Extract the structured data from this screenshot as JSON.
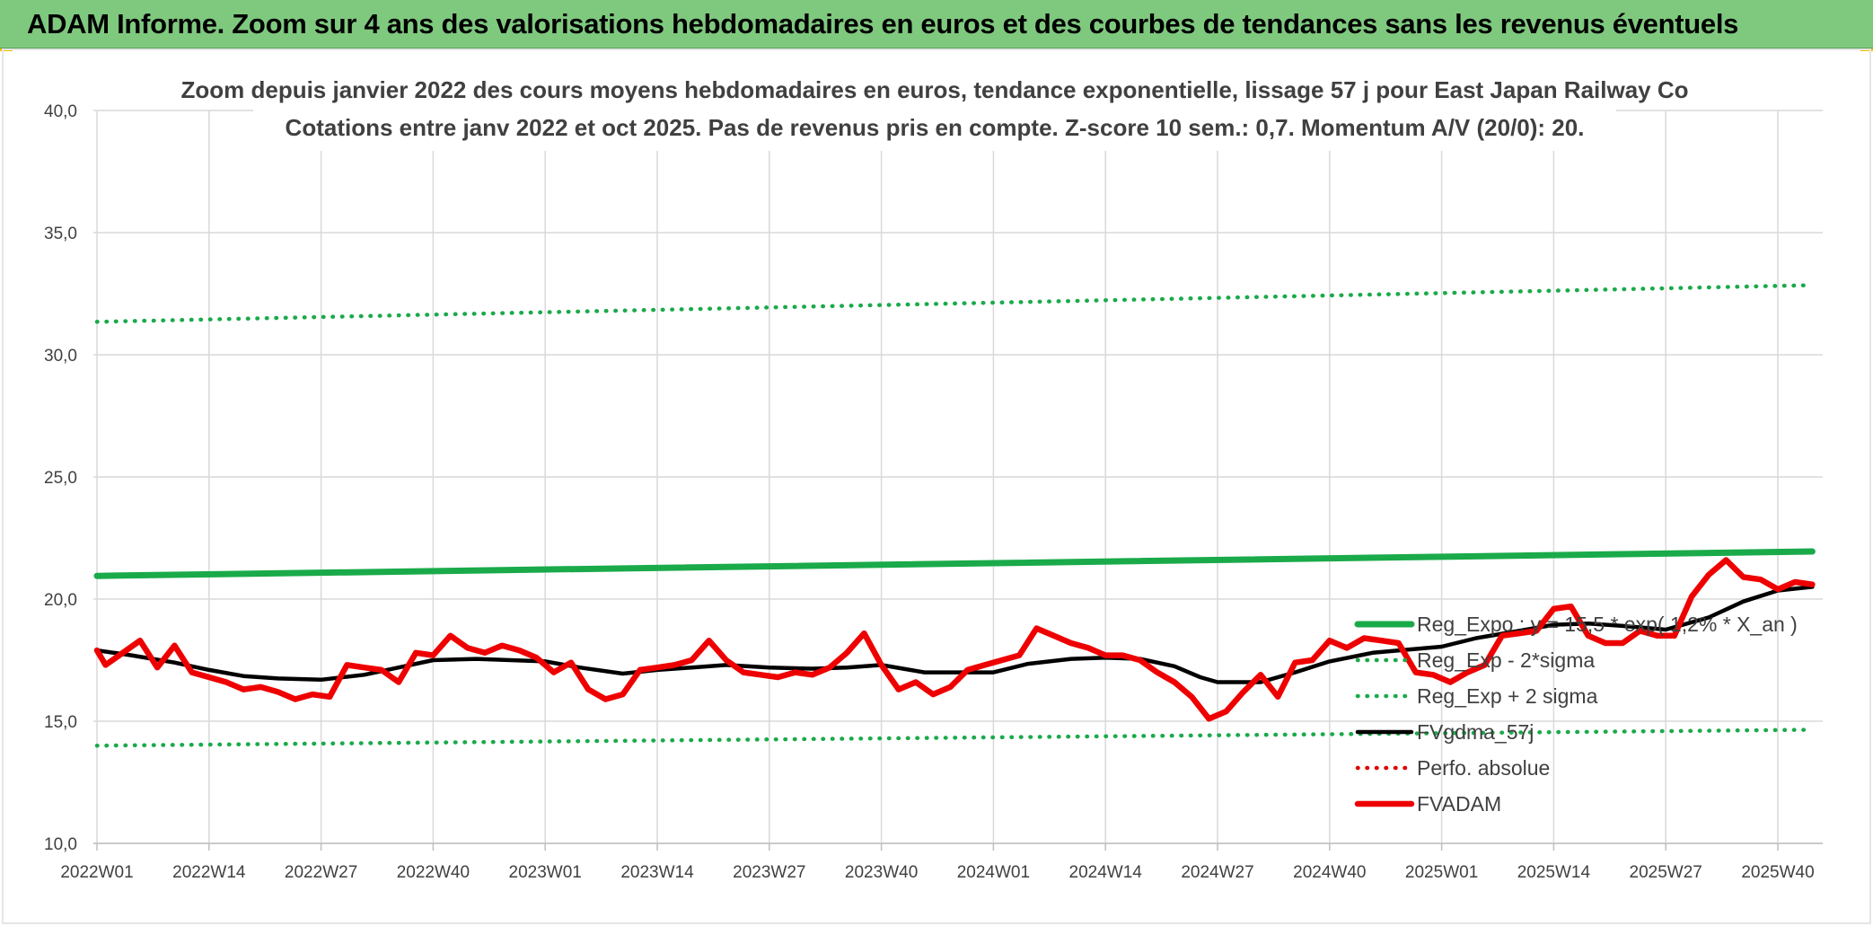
{
  "banner": {
    "title": "ADAM Informe. Zoom sur 4 ans des valorisations hebdomadaires en euros et des courbes de tendances sans les revenus éventuels",
    "background": "#7fc97f"
  },
  "chart_data": {
    "type": "line",
    "title": "Zoom depuis janvier 2022 des cours moyens hebdomadaires en euros, tendance exponentielle, lissage 57 j pour East Japan Railway Co",
    "subtitle": "Cotations entre janv 2022 et oct 2025. Pas de revenus pris en compte. Z-score 10 sem.: 0,7. Momentum A/V (20/0): 20.",
    "xlabel": "",
    "ylabel": "",
    "ylim": [
      10,
      40
    ],
    "yticks": [
      "10,0",
      "15,0",
      "20,0",
      "25,0",
      "30,0",
      "35,0",
      "40,0"
    ],
    "grid": true,
    "legend_position": "right",
    "x_tick_labels": [
      "2022W01",
      "2022W14",
      "2022W27",
      "2022W40",
      "2023W01",
      "2023W14",
      "2023W27",
      "2023W40",
      "2024W01",
      "2024W14",
      "2024W27",
      "2024W40",
      "2025W01",
      "2025W14",
      "2025W27",
      "2025W40"
    ],
    "series": [
      {
        "name": "Reg_Expo : y = 15,5 * exp( 1,2% * X_an )",
        "color": "#1aaa4a",
        "style": "solid-thick",
        "x": [
          "2022W01",
          "2025W44"
        ],
        "values": [
          20.95,
          21.95
        ]
      },
      {
        "name": "Reg_Exp - 2*sigma",
        "color": "#1aaa4a",
        "style": "dotted",
        "x": [
          "2022W01",
          "2025W44"
        ],
        "values": [
          14.0,
          14.65
        ]
      },
      {
        "name": "Reg_Exp + 2 sigma",
        "color": "#1aaa4a",
        "style": "dotted",
        "x": [
          "2022W01",
          "2025W44"
        ],
        "values": [
          31.35,
          32.85
        ]
      },
      {
        "name": "FVgdma_57j",
        "color": "#000000",
        "style": "solid",
        "x": [
          "2022W01",
          "2022W05",
          "2022W10",
          "2022W14",
          "2022W18",
          "2022W22",
          "2022W27",
          "2022W32",
          "2022W36",
          "2022W40",
          "2022W45",
          "2023W01",
          "2023W05",
          "2023W10",
          "2023W14",
          "2023W18",
          "2023W22",
          "2023W27",
          "2023W32",
          "2023W36",
          "2023W40",
          "2023W45",
          "2024W01",
          "2024W05",
          "2024W10",
          "2024W14",
          "2024W18",
          "2024W22",
          "2024W25",
          "2024W27",
          "2024W32",
          "2024W36",
          "2024W40",
          "2024W45",
          "2025W01",
          "2025W05",
          "2025W10",
          "2025W14",
          "2025W18",
          "2025W22",
          "2025W27",
          "2025W32",
          "2025W36",
          "2025W40",
          "2025W44"
        ],
        "values": [
          17.9,
          17.7,
          17.4,
          17.1,
          16.85,
          16.75,
          16.7,
          16.9,
          17.2,
          17.5,
          17.55,
          17.45,
          17.2,
          16.95,
          17.1,
          17.2,
          17.3,
          17.2,
          17.15,
          17.2,
          17.3,
          17.0,
          17.0,
          17.35,
          17.55,
          17.6,
          17.55,
          17.25,
          16.8,
          16.6,
          16.6,
          17.0,
          17.45,
          17.8,
          18.05,
          18.4,
          18.7,
          18.95,
          19.0,
          18.9,
          18.75,
          19.25,
          19.9,
          20.35,
          20.5
        ]
      },
      {
        "name": "Perfo. absolue",
        "color": "#e00000",
        "style": "dotted",
        "x": [],
        "values": []
      },
      {
        "name": "FVADAM",
        "color": "#ee0000",
        "style": "solid-thick",
        "x": [
          "2022W01",
          "2022W02",
          "2022W04",
          "2022W06",
          "2022W08",
          "2022W10",
          "2022W12",
          "2022W14",
          "2022W16",
          "2022W18",
          "2022W20",
          "2022W22",
          "2022W24",
          "2022W26",
          "2022W28",
          "2022W30",
          "2022W32",
          "2022W34",
          "2022W36",
          "2022W38",
          "2022W40",
          "2022W42",
          "2022W44",
          "2022W46",
          "2022W48",
          "2022W50",
          "2022W52",
          "2023W02",
          "2023W04",
          "2023W06",
          "2023W08",
          "2023W10",
          "2023W12",
          "2023W14",
          "2023W16",
          "2023W18",
          "2023W20",
          "2023W22",
          "2023W24",
          "2023W26",
          "2023W28",
          "2023W30",
          "2023W32",
          "2023W34",
          "2023W36",
          "2023W38",
          "2023W40",
          "2023W42",
          "2023W44",
          "2023W46",
          "2023W48",
          "2023W50",
          "2023W52",
          "2024W02",
          "2024W04",
          "2024W06",
          "2024W08",
          "2024W10",
          "2024W12",
          "2024W14",
          "2024W16",
          "2024W18",
          "2024W20",
          "2024W22",
          "2024W24",
          "2024W26",
          "2024W28",
          "2024W30",
          "2024W32",
          "2024W34",
          "2024W36",
          "2024W38",
          "2024W40",
          "2024W42",
          "2024W44",
          "2024W46",
          "2024W48",
          "2024W50",
          "2024W52",
          "2025W02",
          "2025W04",
          "2025W06",
          "2025W08",
          "2025W10",
          "2025W12",
          "2025W14",
          "2025W16",
          "2025W18",
          "2025W20",
          "2025W22",
          "2025W24",
          "2025W26",
          "2025W28",
          "2025W30",
          "2025W32",
          "2025W34",
          "2025W36",
          "2025W38",
          "2025W40",
          "2025W42",
          "2025W44"
        ],
        "values": [
          17.9,
          17.3,
          17.8,
          18.3,
          17.2,
          18.1,
          17.0,
          16.8,
          16.6,
          16.3,
          16.4,
          16.2,
          15.9,
          16.1,
          16.0,
          17.3,
          17.2,
          17.1,
          16.6,
          17.8,
          17.7,
          18.5,
          18.0,
          17.8,
          18.1,
          17.9,
          17.6,
          17.0,
          17.4,
          16.3,
          15.9,
          16.1,
          17.1,
          17.2,
          17.3,
          17.5,
          18.3,
          17.5,
          17.0,
          16.9,
          16.8,
          17.0,
          16.9,
          17.2,
          17.8,
          18.6,
          17.3,
          16.3,
          16.6,
          16.1,
          16.4,
          17.1,
          17.3,
          17.5,
          17.7,
          18.8,
          18.5,
          18.2,
          18.0,
          17.7,
          17.7,
          17.5,
          17.0,
          16.6,
          16.0,
          15.1,
          15.4,
          16.2,
          16.9,
          16.0,
          17.4,
          17.5,
          18.3,
          18.0,
          18.4,
          18.3,
          18.2,
          17.0,
          16.9,
          16.6,
          17.0,
          17.3,
          18.5,
          18.6,
          18.7,
          19.6,
          19.7,
          18.5,
          18.2,
          18.2,
          18.7,
          18.5,
          18.5,
          20.1,
          21.0,
          21.6,
          20.9,
          20.8,
          20.4,
          20.7,
          20.6
        ]
      }
    ]
  }
}
